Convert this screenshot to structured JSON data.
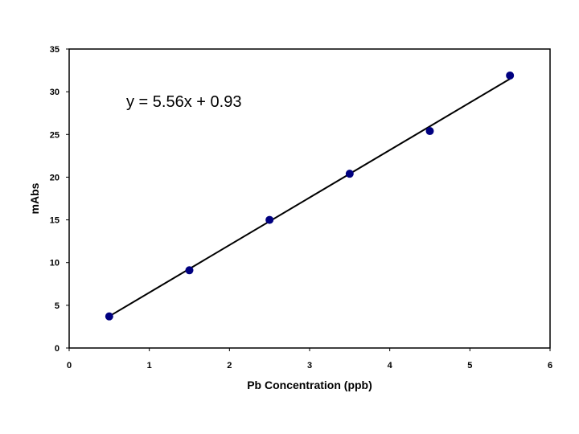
{
  "chart_data": {
    "type": "scatter",
    "xlabel": "Pb Concentration (ppb)",
    "ylabel": "mAbs",
    "xlim": [
      0,
      6
    ],
    "ylim": [
      0,
      35
    ],
    "x_ticks": [
      0,
      1,
      2,
      3,
      4,
      5,
      6
    ],
    "y_ticks": [
      0,
      5,
      10,
      15,
      20,
      25,
      30,
      35
    ],
    "grid": false,
    "series": [
      {
        "x": [
          0.5,
          1.5,
          2.5,
          3.5,
          4.5,
          5.5
        ],
        "y": [
          3.7,
          9.1,
          15.0,
          20.4,
          25.4,
          31.9
        ],
        "marker_color": "#000080"
      }
    ],
    "trendline": {
      "slope": 5.56,
      "intercept": 0.93,
      "x_range": [
        0.5,
        5.5
      ],
      "color": "#000000"
    },
    "annotations": [
      {
        "text": "y = 5.56x + 0.93"
      }
    ]
  }
}
